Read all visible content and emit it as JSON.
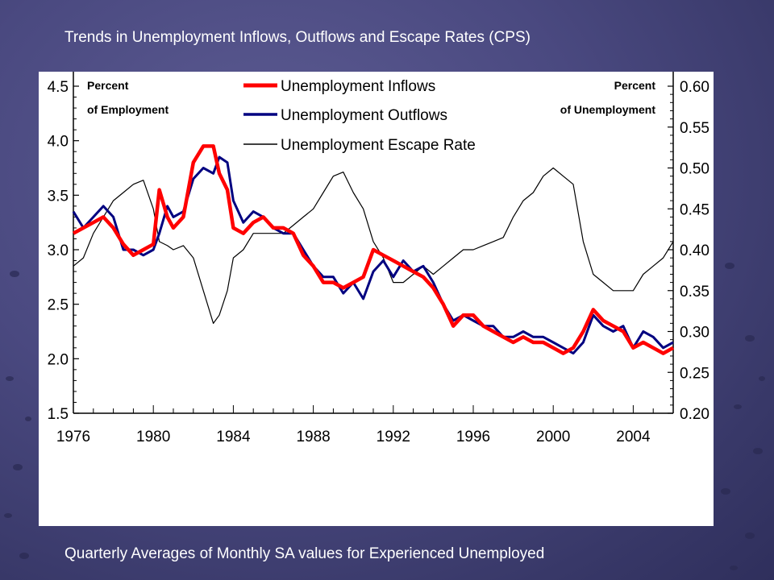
{
  "slide": {
    "title": "Trends in Unemployment Inflows, Outflows and Escape Rates (CPS)",
    "caption": "Quarterly Averages of Monthly SA values for Experienced Unemployed"
  },
  "chart_data": {
    "type": "line",
    "title": "Trends in Unemployment Inflows, Outflows and Escape Rates (CPS)",
    "x_range": [
      1976,
      2006
    ],
    "x_ticks": [
      "1976",
      "1980",
      "1984",
      "1988",
      "1992",
      "1996",
      "2000",
      "2004"
    ],
    "left_axis": {
      "note_line1": "Percent",
      "note_line2": "of Employment",
      "range": [
        1.5,
        4.5
      ],
      "ticks": [
        "1.5",
        "2.0",
        "2.5",
        "3.0",
        "3.5",
        "4.0",
        "4.5"
      ]
    },
    "right_axis": {
      "note_line1": "Percent",
      "note_line2": "of Unemployment",
      "range": [
        0.2,
        0.6
      ],
      "ticks": [
        "0.20",
        "0.25",
        "0.30",
        "0.35",
        "0.40",
        "0.45",
        "0.50",
        "0.55",
        "0.60"
      ]
    },
    "legend_position": "top-center",
    "series": [
      {
        "name": "Unemployment Inflows",
        "axis": "left",
        "color": "#ff0000",
        "points": [
          [
            1976.0,
            3.15
          ],
          [
            1976.5,
            3.2
          ],
          [
            1977.0,
            3.25
          ],
          [
            1977.5,
            3.3
          ],
          [
            1978.0,
            3.2
          ],
          [
            1978.5,
            3.05
          ],
          [
            1979.0,
            2.95
          ],
          [
            1979.5,
            3.0
          ],
          [
            1980.0,
            3.05
          ],
          [
            1980.3,
            3.55
          ],
          [
            1980.7,
            3.3
          ],
          [
            1981.0,
            3.2
          ],
          [
            1981.5,
            3.3
          ],
          [
            1982.0,
            3.8
          ],
          [
            1982.5,
            3.95
          ],
          [
            1983.0,
            3.95
          ],
          [
            1983.3,
            3.7
          ],
          [
            1983.7,
            3.55
          ],
          [
            1984.0,
            3.2
          ],
          [
            1984.5,
            3.15
          ],
          [
            1985.0,
            3.25
          ],
          [
            1985.5,
            3.3
          ],
          [
            1986.0,
            3.2
          ],
          [
            1986.5,
            3.2
          ],
          [
            1987.0,
            3.15
          ],
          [
            1987.5,
            2.95
          ],
          [
            1988.0,
            2.85
          ],
          [
            1988.5,
            2.7
          ],
          [
            1989.0,
            2.7
          ],
          [
            1989.5,
            2.65
          ],
          [
            1990.0,
            2.7
          ],
          [
            1990.5,
            2.75
          ],
          [
            1991.0,
            3.0
          ],
          [
            1991.5,
            2.95
          ],
          [
            1992.0,
            2.9
          ],
          [
            1992.5,
            2.85
          ],
          [
            1993.0,
            2.8
          ],
          [
            1993.5,
            2.75
          ],
          [
            1994.0,
            2.65
          ],
          [
            1994.5,
            2.5
          ],
          [
            1995.0,
            2.3
          ],
          [
            1995.5,
            2.4
          ],
          [
            1996.0,
            2.4
          ],
          [
            1996.5,
            2.3
          ],
          [
            1997.0,
            2.25
          ],
          [
            1997.5,
            2.2
          ],
          [
            1998.0,
            2.15
          ],
          [
            1998.5,
            2.2
          ],
          [
            1999.0,
            2.15
          ],
          [
            1999.5,
            2.15
          ],
          [
            2000.0,
            2.1
          ],
          [
            2000.5,
            2.05
          ],
          [
            2001.0,
            2.1
          ],
          [
            2001.5,
            2.25
          ],
          [
            2002.0,
            2.45
          ],
          [
            2002.5,
            2.35
          ],
          [
            2003.0,
            2.3
          ],
          [
            2003.5,
            2.25
          ],
          [
            2004.0,
            2.1
          ],
          [
            2004.5,
            2.15
          ],
          [
            2005.0,
            2.1
          ],
          [
            2005.5,
            2.05
          ],
          [
            2006.0,
            2.1
          ]
        ]
      },
      {
        "name": "Unemployment Outflows",
        "axis": "left",
        "color": "#000080",
        "points": [
          [
            1976.0,
            3.35
          ],
          [
            1976.5,
            3.2
          ],
          [
            1977.0,
            3.3
          ],
          [
            1977.5,
            3.4
          ],
          [
            1978.0,
            3.3
          ],
          [
            1978.5,
            3.0
          ],
          [
            1979.0,
            3.0
          ],
          [
            1979.5,
            2.95
          ],
          [
            1980.0,
            3.0
          ],
          [
            1980.3,
            3.15
          ],
          [
            1980.7,
            3.4
          ],
          [
            1981.0,
            3.3
          ],
          [
            1981.5,
            3.35
          ],
          [
            1982.0,
            3.65
          ],
          [
            1982.5,
            3.75
          ],
          [
            1983.0,
            3.7
          ],
          [
            1983.3,
            3.85
          ],
          [
            1983.7,
            3.8
          ],
          [
            1984.0,
            3.45
          ],
          [
            1984.5,
            3.25
          ],
          [
            1985.0,
            3.35
          ],
          [
            1985.5,
            3.3
          ],
          [
            1986.0,
            3.2
          ],
          [
            1986.5,
            3.15
          ],
          [
            1987.0,
            3.15
          ],
          [
            1987.5,
            3.0
          ],
          [
            1988.0,
            2.85
          ],
          [
            1988.5,
            2.75
          ],
          [
            1989.0,
            2.75
          ],
          [
            1989.5,
            2.6
          ],
          [
            1990.0,
            2.7
          ],
          [
            1990.5,
            2.55
          ],
          [
            1991.0,
            2.8
          ],
          [
            1991.5,
            2.9
          ],
          [
            1992.0,
            2.75
          ],
          [
            1992.5,
            2.9
          ],
          [
            1993.0,
            2.8
          ],
          [
            1993.5,
            2.85
          ],
          [
            1994.0,
            2.7
          ],
          [
            1994.5,
            2.5
          ],
          [
            1995.0,
            2.35
          ],
          [
            1995.5,
            2.4
          ],
          [
            1996.0,
            2.35
          ],
          [
            1996.5,
            2.3
          ],
          [
            1997.0,
            2.3
          ],
          [
            1997.5,
            2.2
          ],
          [
            1998.0,
            2.2
          ],
          [
            1998.5,
            2.25
          ],
          [
            1999.0,
            2.2
          ],
          [
            1999.5,
            2.2
          ],
          [
            2000.0,
            2.15
          ],
          [
            2000.5,
            2.1
          ],
          [
            2001.0,
            2.05
          ],
          [
            2001.5,
            2.15
          ],
          [
            2002.0,
            2.4
          ],
          [
            2002.5,
            2.3
          ],
          [
            2003.0,
            2.25
          ],
          [
            2003.5,
            2.3
          ],
          [
            2004.0,
            2.1
          ],
          [
            2004.5,
            2.25
          ],
          [
            2005.0,
            2.2
          ],
          [
            2005.5,
            2.1
          ],
          [
            2006.0,
            2.15
          ]
        ]
      },
      {
        "name": "Unemployment Escape Rate",
        "axis": "right",
        "color": "#000000",
        "points": [
          [
            1976.0,
            0.38
          ],
          [
            1976.5,
            0.39
          ],
          [
            1977.0,
            0.42
          ],
          [
            1977.5,
            0.44
          ],
          [
            1978.0,
            0.46
          ],
          [
            1978.5,
            0.47
          ],
          [
            1979.0,
            0.48
          ],
          [
            1979.5,
            0.485
          ],
          [
            1980.0,
            0.45
          ],
          [
            1980.3,
            0.41
          ],
          [
            1980.7,
            0.405
          ],
          [
            1981.0,
            0.4
          ],
          [
            1981.5,
            0.405
          ],
          [
            1982.0,
            0.39
          ],
          [
            1982.5,
            0.35
          ],
          [
            1983.0,
            0.31
          ],
          [
            1983.3,
            0.32
          ],
          [
            1983.7,
            0.35
          ],
          [
            1984.0,
            0.39
          ],
          [
            1984.5,
            0.4
          ],
          [
            1985.0,
            0.42
          ],
          [
            1985.5,
            0.42
          ],
          [
            1986.0,
            0.42
          ],
          [
            1986.5,
            0.42
          ],
          [
            1987.0,
            0.43
          ],
          [
            1987.5,
            0.44
          ],
          [
            1988.0,
            0.45
          ],
          [
            1988.5,
            0.47
          ],
          [
            1989.0,
            0.49
          ],
          [
            1989.5,
            0.495
          ],
          [
            1990.0,
            0.47
          ],
          [
            1990.5,
            0.45
          ],
          [
            1991.0,
            0.41
          ],
          [
            1991.5,
            0.39
          ],
          [
            1992.0,
            0.36
          ],
          [
            1992.5,
            0.36
          ],
          [
            1993.0,
            0.37
          ],
          [
            1993.5,
            0.38
          ],
          [
            1994.0,
            0.37
          ],
          [
            1994.5,
            0.38
          ],
          [
            1995.0,
            0.39
          ],
          [
            1995.5,
            0.4
          ],
          [
            1996.0,
            0.4
          ],
          [
            1996.5,
            0.405
          ],
          [
            1997.0,
            0.41
          ],
          [
            1997.5,
            0.415
          ],
          [
            1998.0,
            0.44
          ],
          [
            1998.5,
            0.46
          ],
          [
            1999.0,
            0.47
          ],
          [
            1999.5,
            0.49
          ],
          [
            2000.0,
            0.5
          ],
          [
            2000.5,
            0.49
          ],
          [
            2001.0,
            0.48
          ],
          [
            2001.5,
            0.41
          ],
          [
            2002.0,
            0.37
          ],
          [
            2002.5,
            0.36
          ],
          [
            2003.0,
            0.35
          ],
          [
            2003.5,
            0.35
          ],
          [
            2004.0,
            0.35
          ],
          [
            2004.5,
            0.37
          ],
          [
            2005.0,
            0.38
          ],
          [
            2005.5,
            0.39
          ],
          [
            2006.0,
            0.41
          ]
        ]
      }
    ]
  }
}
